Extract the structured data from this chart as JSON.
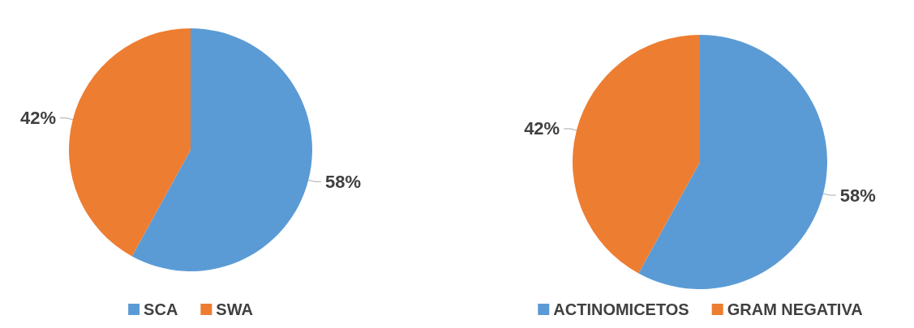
{
  "chart_data": [
    {
      "type": "pie",
      "categories": [
        "SCA",
        "SWA"
      ],
      "values": [
        58,
        42
      ],
      "colors": [
        "#5b9bd5",
        "#ed7d31"
      ],
      "value_labels": [
        "58%",
        "42%"
      ],
      "legend": "bottom"
    },
    {
      "type": "pie",
      "categories": [
        "ACTINOMICETOS",
        "GRAM NEGATIVA"
      ],
      "values": [
        58,
        42
      ],
      "colors": [
        "#5b9bd5",
        "#ed7d31"
      ],
      "value_labels": [
        "58%",
        "42%"
      ],
      "legend": "bottom"
    }
  ]
}
